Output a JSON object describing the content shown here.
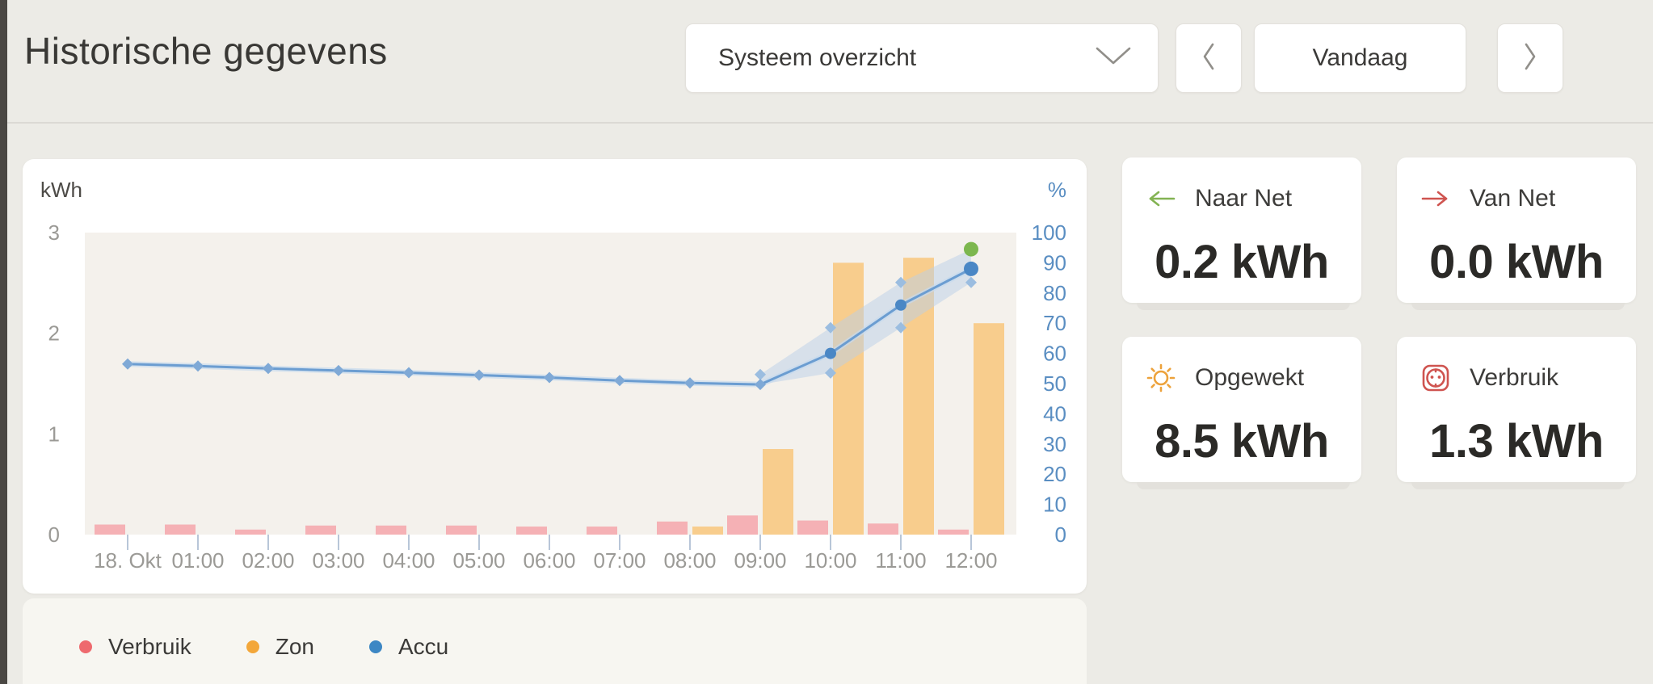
{
  "header": {
    "title": "Historische gegevens"
  },
  "controls": {
    "view_select": {
      "value": "Systeem overzicht"
    },
    "date_label": "Vandaag"
  },
  "summary_cards": [
    {
      "id": "naar-net",
      "label": "Naar Net",
      "value": "0.2 kWh",
      "icon": "arrow-left-icon",
      "icon_color": "#83b353"
    },
    {
      "id": "van-net",
      "label": "Van Net",
      "value": "0.0 kWh",
      "icon": "arrow-right-icon",
      "icon_color": "#cf5450"
    },
    {
      "id": "opgewekt",
      "label": "Opgewekt",
      "value": "8.5 kWh",
      "icon": "sun-icon",
      "icon_color": "#eda23b"
    },
    {
      "id": "verbruik",
      "label": "Verbruik",
      "value": "1.3 kWh",
      "icon": "socket-icon",
      "icon_color": "#cf5450"
    }
  ],
  "legend": {
    "items": [
      {
        "label": "Verbruik",
        "color": "#ee6a6e"
      },
      {
        "label": "Zon",
        "color": "#f3a73a"
      },
      {
        "label": "Accu",
        "color": "#3d87c4"
      }
    ]
  },
  "chart_data": {
    "type": "bar",
    "title": "Historische gegevens - Systeem overzicht - Vandaag",
    "categories": [
      "18. Okt",
      "01:00",
      "02:00",
      "03:00",
      "04:00",
      "05:00",
      "06:00",
      "07:00",
      "08:00",
      "09:00",
      "10:00",
      "11:00",
      "12:00"
    ],
    "left_axis": {
      "label": "kWh",
      "ticks": [
        0,
        1,
        2,
        3
      ],
      "max": 3,
      "color": "#9b9a96"
    },
    "right_axis": {
      "label": "%",
      "ticks": [
        0,
        10,
        20,
        30,
        40,
        50,
        60,
        70,
        80,
        90,
        100
      ],
      "max": 100,
      "color": "#5a8ec2"
    },
    "series": [
      {
        "name": "Verbruik",
        "type": "bar",
        "unit": "kWh",
        "color": "#f5b1b5",
        "values": [
          0.1,
          0.1,
          0.05,
          0.09,
          0.09,
          0.09,
          0.08,
          0.08,
          0.13,
          0.19,
          0.14,
          0.11,
          0.05
        ]
      },
      {
        "name": "Zon",
        "type": "bar",
        "unit": "kWh",
        "color": "#f8cd8d",
        "values": [
          0,
          0,
          0,
          0,
          0,
          0,
          0,
          0,
          0.08,
          0.85,
          2.7,
          2.75,
          2.1
        ]
      },
      {
        "name": "Accu",
        "type": "line",
        "unit": "%",
        "color": "#6b9dd1",
        "values": [
          56.5,
          55.8,
          55.0,
          54.3,
          53.6,
          52.8,
          52.0,
          51.0,
          50.2,
          49.7,
          60.0,
          76.0,
          88.0
        ]
      }
    ],
    "forecast_band": {
      "name": "Accu prognose",
      "start_index": 9,
      "upper": [
        53.0,
        68.5,
        83.5,
        94.5
      ],
      "lower": [
        49.7,
        53.5,
        68.5,
        83.5
      ],
      "fill": "#b9cfe7"
    },
    "forecast_end_point": {
      "index": 12,
      "value": 94.5,
      "color": "#7cb74e"
    },
    "plot_background": "#f4f1ec",
    "grid": false,
    "legend_position": "bottom"
  }
}
